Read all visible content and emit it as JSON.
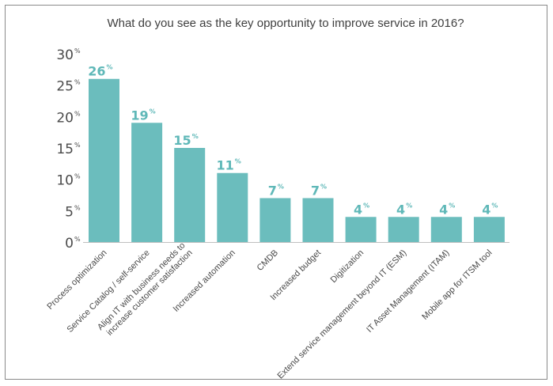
{
  "colors": {
    "bar": "#6bbdbd",
    "label": "#5fb8b8",
    "axis": "#bfbfbf"
  },
  "chart_data": {
    "type": "bar",
    "title": "What do you see as the key opportunity to improve service in 2016?",
    "ylim": [
      0,
      30
    ],
    "yticks": [
      {
        "value": 0,
        "label": "0",
        "unit": "%"
      },
      {
        "value": 5,
        "label": "5",
        "unit": "%"
      },
      {
        "value": 10,
        "label": "10",
        "unit": "%"
      },
      {
        "value": 15,
        "label": "15",
        "unit": "%"
      },
      {
        "value": 20,
        "label": "20",
        "unit": "%"
      },
      {
        "value": 25,
        "label": "25",
        "unit": "%"
      },
      {
        "value": 30,
        "label": "30",
        "unit": "%"
      }
    ],
    "categories": [
      [
        "Process optimization"
      ],
      [
        "Service Catalog / self-service"
      ],
      [
        "Align IT with business needs to",
        "increase customer satisfaction"
      ],
      [
        "Increased automation"
      ],
      [
        "CMDB"
      ],
      [
        "Increased budget"
      ],
      [
        "Digitization"
      ],
      [
        "Extend service management beyond IT (ESM)"
      ],
      [
        "IT Asset Management (ITAM)"
      ],
      [
        "Mobile app for ITSM tool"
      ]
    ],
    "values": [
      26,
      19,
      15,
      11,
      7,
      7,
      4,
      4,
      4,
      4
    ],
    "value_unit": "%"
  }
}
